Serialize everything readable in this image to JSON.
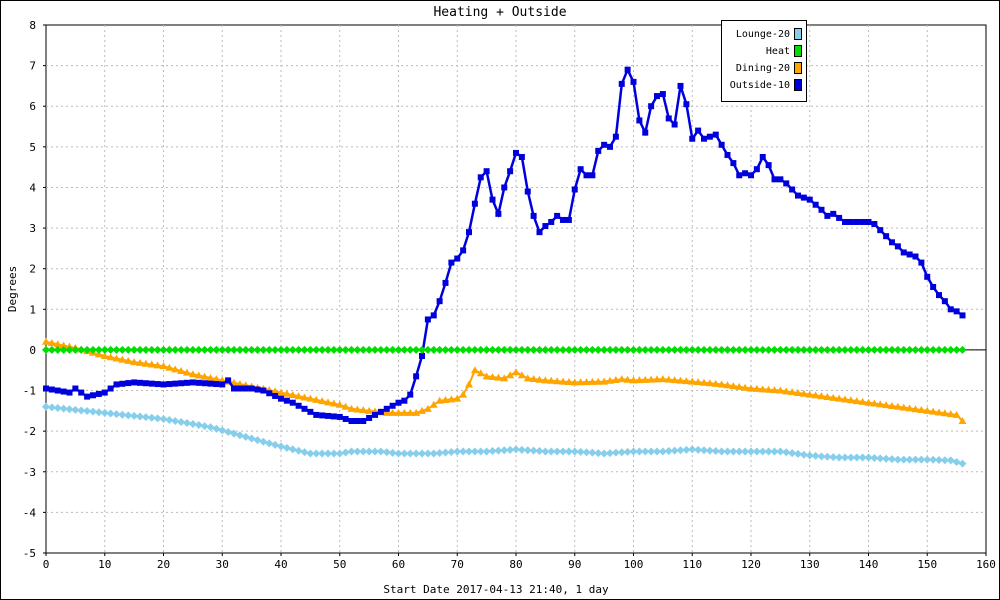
{
  "chart_data": {
    "type": "line",
    "title": "Heating + Outside",
    "xlabel": "Start Date 2017-04-13 21:40, 1 day",
    "ylabel": "Degrees",
    "xlim": [
      0,
      160
    ],
    "ylim": [
      -5,
      8
    ],
    "x_ticks": [
      0,
      10,
      20,
      30,
      40,
      50,
      60,
      70,
      80,
      90,
      100,
      110,
      120,
      130,
      140,
      150,
      160
    ],
    "y_ticks": [
      -5,
      -4,
      -3,
      -2,
      -1,
      0,
      1,
      2,
      3,
      4,
      5,
      6,
      7,
      8
    ],
    "grid": true,
    "legend_position": "top-right",
    "series": [
      {
        "name": "Lounge-20",
        "color": "#87ceeb",
        "marker": "diamond",
        "points": [
          [
            0,
            -1.4
          ],
          [
            10,
            -1.55
          ],
          [
            20,
            -1.7
          ],
          [
            28,
            -1.9
          ],
          [
            33,
            -2.1
          ],
          [
            38,
            -2.3
          ],
          [
            42,
            -2.45
          ],
          [
            45,
            -2.55
          ],
          [
            50,
            -2.55
          ],
          [
            52,
            -2.5
          ],
          [
            57,
            -2.5
          ],
          [
            60,
            -2.55
          ],
          [
            66,
            -2.55
          ],
          [
            70,
            -2.5
          ],
          [
            75,
            -2.5
          ],
          [
            80,
            -2.45
          ],
          [
            85,
            -2.5
          ],
          [
            90,
            -2.5
          ],
          [
            95,
            -2.55
          ],
          [
            100,
            -2.5
          ],
          [
            105,
            -2.5
          ],
          [
            110,
            -2.45
          ],
          [
            115,
            -2.5
          ],
          [
            120,
            -2.5
          ],
          [
            125,
            -2.5
          ],
          [
            130,
            -2.6
          ],
          [
            135,
            -2.65
          ],
          [
            140,
            -2.65
          ],
          [
            145,
            -2.7
          ],
          [
            150,
            -2.7
          ],
          [
            154,
            -2.72
          ],
          [
            156,
            -2.8
          ]
        ]
      },
      {
        "name": "Heat",
        "color": "#00dd00",
        "marker": "diamond",
        "points": [
          [
            0,
            0
          ],
          [
            156,
            0
          ]
        ]
      },
      {
        "name": "Dining-20",
        "color": "#ffa500",
        "marker": "triangle",
        "points": [
          [
            0,
            0.2
          ],
          [
            5,
            0.05
          ],
          [
            10,
            -0.15
          ],
          [
            15,
            -0.3
          ],
          [
            20,
            -0.4
          ],
          [
            25,
            -0.6
          ],
          [
            30,
            -0.75
          ],
          [
            35,
            -0.9
          ],
          [
            40,
            -1.05
          ],
          [
            45,
            -1.2
          ],
          [
            50,
            -1.35
          ],
          [
            52,
            -1.45
          ],
          [
            55,
            -1.5
          ],
          [
            58,
            -1.55
          ],
          [
            63,
            -1.55
          ],
          [
            65,
            -1.45
          ],
          [
            67,
            -1.25
          ],
          [
            70,
            -1.2
          ],
          [
            71,
            -1.1
          ],
          [
            72,
            -0.85
          ],
          [
            73,
            -0.5
          ],
          [
            75,
            -0.65
          ],
          [
            78,
            -0.7
          ],
          [
            80,
            -0.55
          ],
          [
            82,
            -0.7
          ],
          [
            85,
            -0.75
          ],
          [
            90,
            -0.8
          ],
          [
            95,
            -0.78
          ],
          [
            98,
            -0.72
          ],
          [
            100,
            -0.75
          ],
          [
            105,
            -0.72
          ],
          [
            110,
            -0.78
          ],
          [
            115,
            -0.85
          ],
          [
            120,
            -0.95
          ],
          [
            125,
            -1.0
          ],
          [
            130,
            -1.1
          ],
          [
            135,
            -1.2
          ],
          [
            140,
            -1.3
          ],
          [
            145,
            -1.4
          ],
          [
            150,
            -1.5
          ],
          [
            155,
            -1.6
          ],
          [
            156,
            -1.75
          ]
        ]
      },
      {
        "name": "Outside-10",
        "color": "#0000dd",
        "marker": "square",
        "points": [
          [
            0,
            -0.95
          ],
          [
            2,
            -1.0
          ],
          [
            4,
            -1.05
          ],
          [
            5,
            -0.95
          ],
          [
            7,
            -1.15
          ],
          [
            10,
            -1.05
          ],
          [
            12,
            -0.85
          ],
          [
            15,
            -0.8
          ],
          [
            20,
            -0.85
          ],
          [
            25,
            -0.8
          ],
          [
            30,
            -0.85
          ],
          [
            31,
            -0.75
          ],
          [
            32,
            -0.95
          ],
          [
            35,
            -0.95
          ],
          [
            37,
            -1.0
          ],
          [
            40,
            -1.2
          ],
          [
            42,
            -1.3
          ],
          [
            44,
            -1.45
          ],
          [
            46,
            -1.6
          ],
          [
            50,
            -1.65
          ],
          [
            52,
            -1.75
          ],
          [
            54,
            -1.75
          ],
          [
            56,
            -1.6
          ],
          [
            58,
            -1.45
          ],
          [
            60,
            -1.3
          ],
          [
            61,
            -1.25
          ],
          [
            62,
            -1.1
          ],
          [
            63,
            -0.65
          ],
          [
            64,
            -0.15
          ],
          [
            65,
            0.75
          ],
          [
            66,
            0.85
          ],
          [
            67,
            1.2
          ],
          [
            68,
            1.65
          ],
          [
            69,
            2.15
          ],
          [
            70,
            2.25
          ],
          [
            71,
            2.45
          ],
          [
            72,
            2.9
          ],
          [
            73,
            3.6
          ],
          [
            74,
            4.25
          ],
          [
            75,
            4.4
          ],
          [
            76,
            3.7
          ],
          [
            77,
            3.35
          ],
          [
            78,
            4.0
          ],
          [
            79,
            4.4
          ],
          [
            80,
            4.85
          ],
          [
            81,
            4.75
          ],
          [
            82,
            3.9
          ],
          [
            83,
            3.3
          ],
          [
            84,
            2.9
          ],
          [
            85,
            3.05
          ],
          [
            86,
            3.15
          ],
          [
            87,
            3.3
          ],
          [
            88,
            3.2
          ],
          [
            89,
            3.2
          ],
          [
            90,
            3.95
          ],
          [
            91,
            4.45
          ],
          [
            92,
            4.3
          ],
          [
            93,
            4.3
          ],
          [
            94,
            4.9
          ],
          [
            95,
            5.05
          ],
          [
            96,
            5.0
          ],
          [
            97,
            5.25
          ],
          [
            98,
            6.55
          ],
          [
            99,
            6.9
          ],
          [
            100,
            6.6
          ],
          [
            101,
            5.65
          ],
          [
            102,
            5.35
          ],
          [
            103,
            6.0
          ],
          [
            104,
            6.25
          ],
          [
            105,
            6.3
          ],
          [
            106,
            5.7
          ],
          [
            107,
            5.55
          ],
          [
            108,
            6.5
          ],
          [
            109,
            6.05
          ],
          [
            110,
            5.2
          ],
          [
            111,
            5.4
          ],
          [
            112,
            5.2
          ],
          [
            113,
            5.25
          ],
          [
            114,
            5.3
          ],
          [
            115,
            5.05
          ],
          [
            116,
            4.8
          ],
          [
            117,
            4.6
          ],
          [
            118,
            4.3
          ],
          [
            119,
            4.35
          ],
          [
            120,
            4.3
          ],
          [
            121,
            4.45
          ],
          [
            122,
            4.75
          ],
          [
            123,
            4.55
          ],
          [
            124,
            4.2
          ],
          [
            125,
            4.2
          ],
          [
            126,
            4.1
          ],
          [
            127,
            3.95
          ],
          [
            128,
            3.8
          ],
          [
            130,
            3.7
          ],
          [
            132,
            3.45
          ],
          [
            133,
            3.3
          ],
          [
            134,
            3.35
          ],
          [
            136,
            3.15
          ],
          [
            138,
            3.15
          ],
          [
            140,
            3.15
          ],
          [
            141,
            3.1
          ],
          [
            142,
            2.95
          ],
          [
            143,
            2.8
          ],
          [
            144,
            2.65
          ],
          [
            145,
            2.55
          ],
          [
            146,
            2.4
          ],
          [
            148,
            2.3
          ],
          [
            149,
            2.15
          ],
          [
            150,
            1.8
          ],
          [
            151,
            1.55
          ],
          [
            152,
            1.35
          ],
          [
            153,
            1.2
          ],
          [
            154,
            1.0
          ],
          [
            155,
            0.95
          ],
          [
            156,
            0.85
          ]
        ]
      }
    ]
  }
}
